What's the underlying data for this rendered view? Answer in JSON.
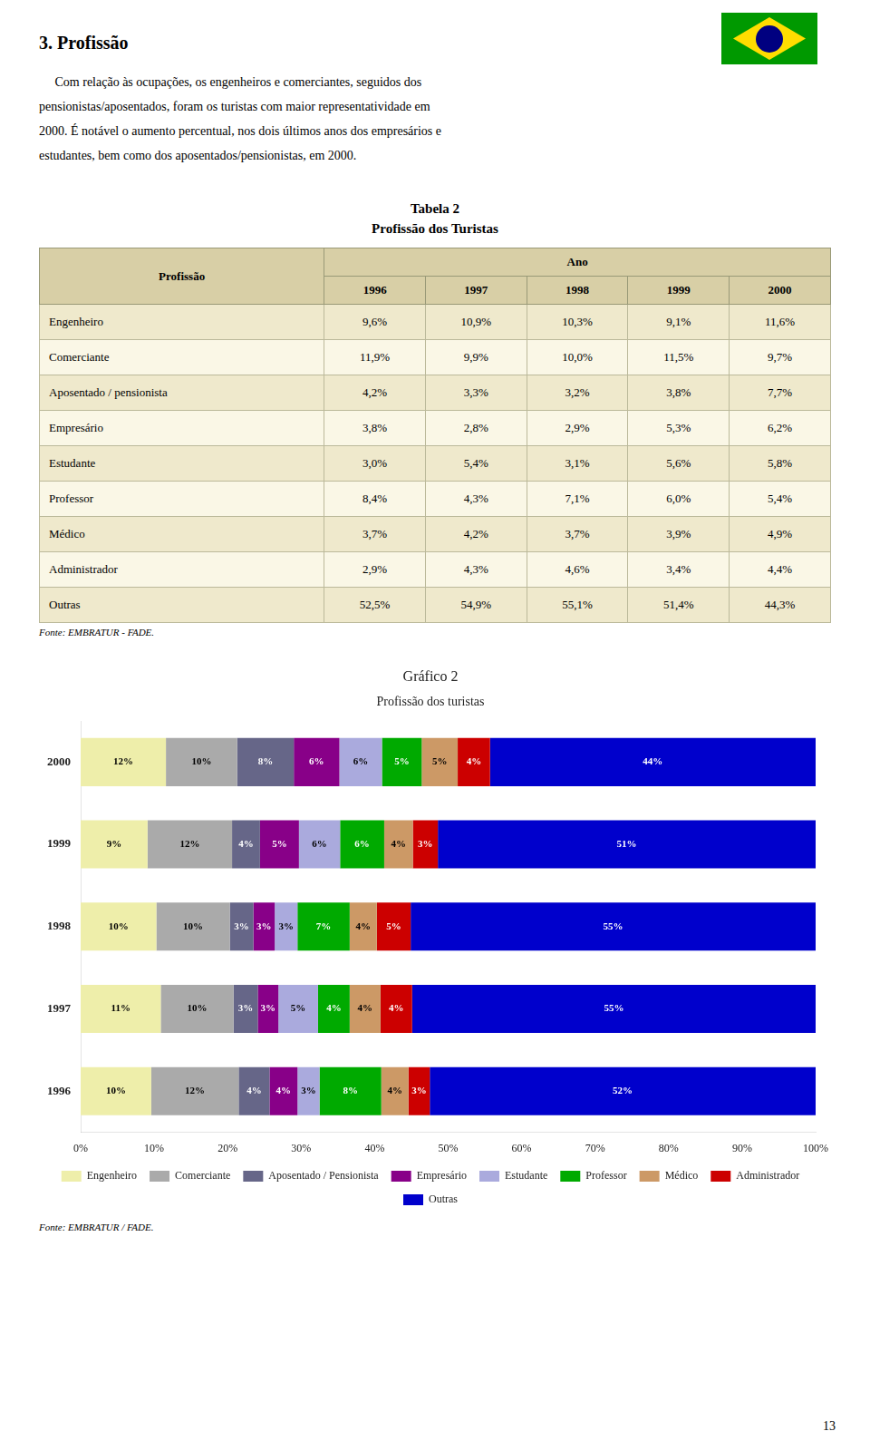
{
  "page_title": "3. Profissão",
  "paragraphs": [
    "     Com relação às ocupações, os engenheiros e comerciantes, seguidos dos",
    "pensionistas/aposentados, foram os turistas com maior representatividade em",
    "2000. É notável o aumento percentual, nos dois últimos anos dos empresários e",
    "estudantes, bem como dos aposentados/pensionistas, em 2000."
  ],
  "table": {
    "title": [
      "Tabela 2",
      "Profissão dos Turistas"
    ],
    "header_col": "Profissão",
    "header_group": "Ano",
    "columns": [
      "1996",
      "1997",
      "1998",
      "1999",
      "2000"
    ],
    "rows": [
      {
        "name": "Engenheiro",
        "values": [
          9.6,
          10.9,
          10.3,
          9.1,
          11.6
        ],
        "value_labels": [
          "9,6%",
          "10,9%",
          "10,3%",
          "9,1%",
          "11,6%"
        ]
      },
      {
        "name": "Comerciante",
        "values": [
          11.9,
          9.9,
          10.0,
          11.5,
          9.7
        ],
        "value_labels": [
          "11,9%",
          "9,9%",
          "10,0%",
          "11,5%",
          "9,7%"
        ]
      },
      {
        "name": "Aposentado / pensionista",
        "values": [
          4.2,
          3.3,
          3.2,
          3.8,
          7.7
        ],
        "value_labels": [
          "4,2%",
          "3,3%",
          "3,2%",
          "3,8%",
          "7,7%"
        ]
      },
      {
        "name": "Empresário",
        "values": [
          3.8,
          2.8,
          2.9,
          5.3,
          6.2
        ],
        "value_labels": [
          "3,8%",
          "2,8%",
          "2,9%",
          "5,3%",
          "6,2%"
        ]
      },
      {
        "name": "Estudante",
        "values": [
          3.0,
          5.4,
          3.1,
          5.6,
          5.8
        ],
        "value_labels": [
          "3,0%",
          "5,4%",
          "3,1%",
          "5,6%",
          "5,8%"
        ]
      },
      {
        "name": "Professor",
        "values": [
          8.4,
          4.3,
          7.1,
          6.0,
          5.4
        ],
        "value_labels": [
          "8,4%",
          "4,3%",
          "7,1%",
          "6,0%",
          "5,4%"
        ]
      },
      {
        "name": "Médico",
        "values": [
          3.7,
          4.2,
          3.7,
          3.9,
          4.9
        ],
        "value_labels": [
          "3,7%",
          "4,2%",
          "3,7%",
          "3,9%",
          "4,9%"
        ]
      },
      {
        "name": "Administrador",
        "values": [
          2.9,
          4.3,
          4.6,
          3.4,
          4.4
        ],
        "value_labels": [
          "2,9%",
          "4,3%",
          "4,6%",
          "3,4%",
          "4,4%"
        ]
      },
      {
        "name": "Outras",
        "values": [
          52.5,
          54.9,
          55.1,
          51.4,
          44.3
        ],
        "value_labels": [
          "52,5%",
          "54,9%",
          "55,1%",
          "51,4%",
          "44,3%"
        ]
      }
    ],
    "source": "Fonte: EMBRATUR - FADE."
  },
  "chart_data": {
    "type": "bar",
    "orientation": "horizontal",
    "stacked": true,
    "title": "Gráfico 2",
    "subtitle": "Profissão dos turistas",
    "categories": [
      "2000",
      "1999",
      "1998",
      "1997",
      "1996"
    ],
    "series": [
      {
        "name": "Engenheiro",
        "color": "#EEEEAA",
        "values": [
          11.6,
          9.1,
          10.3,
          10.9,
          9.6
        ],
        "value_labels": [
          "12%",
          "9%",
          "10%",
          "11%",
          "10%"
        ]
      },
      {
        "name": "Comerciante",
        "color": "#AAAAAA",
        "values": [
          9.7,
          11.5,
          10.0,
          9.9,
          11.9
        ],
        "value_labels": [
          "10%",
          "12%",
          "10%",
          "10%",
          "12%"
        ]
      },
      {
        "name": "Aposentado / Pensionista",
        "color": "#666688",
        "values": [
          7.7,
          3.8,
          3.2,
          3.3,
          4.2
        ],
        "value_labels": [
          "8%",
          "4%",
          "3%",
          "3%",
          "4%"
        ]
      },
      {
        "name": "Empresário",
        "color": "#880088",
        "values": [
          6.2,
          5.3,
          2.9,
          2.8,
          3.8
        ],
        "value_labels": [
          "6%",
          "5%",
          "3%",
          "3%",
          "4%"
        ]
      },
      {
        "name": "Estudante",
        "color": "#AAAADD",
        "values": [
          5.8,
          5.6,
          3.1,
          5.4,
          3.0
        ],
        "value_labels": [
          "6%",
          "6%",
          "3%",
          "5%",
          "3%"
        ]
      },
      {
        "name": "Professor",
        "color": "#00AA00",
        "values": [
          5.4,
          6.0,
          7.1,
          4.3,
          8.4
        ],
        "value_labels": [
          "5%",
          "6%",
          "7%",
          "4%",
          "8%"
        ]
      },
      {
        "name": "Médico",
        "color": "#CC9966",
        "values": [
          4.9,
          3.9,
          3.7,
          4.2,
          3.7
        ],
        "value_labels": [
          "5%",
          "4%",
          "4%",
          "4%",
          "4%"
        ]
      },
      {
        "name": "Administrador",
        "color": "#CC0000",
        "values": [
          4.4,
          3.4,
          4.6,
          4.3,
          2.9
        ],
        "value_labels": [
          "4%",
          "3%",
          "5%",
          "4%",
          "3%"
        ]
      },
      {
        "name": "Outras",
        "color": "#0000CC",
        "values": [
          44.3,
          51.4,
          55.1,
          54.9,
          52.5
        ],
        "value_labels": [
          "44%",
          "51%",
          "55%",
          "55%",
          "52%"
        ]
      }
    ],
    "xlim": [
      0,
      100
    ],
    "xticks": [
      {
        "value": 0,
        "label": "0%"
      },
      {
        "value": 10,
        "label": "10%"
      },
      {
        "value": 20,
        "label": "20%"
      },
      {
        "value": 30,
        "label": "30%"
      },
      {
        "value": 40,
        "label": "40%"
      },
      {
        "value": 50,
        "label": "50%"
      },
      {
        "value": 60,
        "label": "60%"
      },
      {
        "value": 70,
        "label": "70%"
      },
      {
        "value": 80,
        "label": "80%"
      },
      {
        "value": 90,
        "label": "90%"
      },
      {
        "value": 100,
        "label": "100%"
      }
    ],
    "grid": false,
    "legend": "bottom",
    "data_labels": true
  },
  "chart_source": "Fonte: EMBRATUR / FADE.",
  "page_number": "13"
}
